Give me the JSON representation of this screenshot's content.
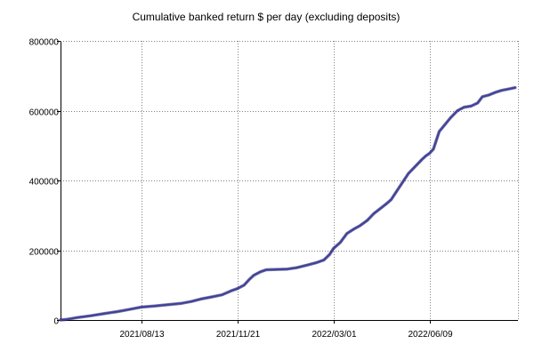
{
  "chart_data": {
    "type": "line",
    "title": "Cumulative banked return $ per day (excluding deposits)",
    "xlabel": "",
    "ylabel": "",
    "x_type": "date",
    "xlim": [
      "2021-05-21",
      "2022-09-09"
    ],
    "ylim": [
      0,
      800000
    ],
    "yticks": [
      0,
      200000,
      400000,
      600000,
      800000
    ],
    "ytick_labels": [
      "0",
      "200000",
      "400000",
      "600000",
      "800000"
    ],
    "xticks": [
      "2021-08-13",
      "2021-11-21",
      "2022-03-01",
      "2022-06-09"
    ],
    "xtick_labels": [
      "2021/08/13",
      "2021/11/21",
      "2022/03/01",
      "2022/06/09"
    ],
    "grid": true,
    "colors": {
      "line": "#4040a0",
      "line_shadow": "#101050",
      "grid": "#808080",
      "axis": "#000000"
    },
    "series": [
      {
        "x": [
          "2021-05-21",
          "2021-05-28",
          "2021-06-07",
          "2021-06-21",
          "2021-07-05",
          "2021-07-19",
          "2021-08-02",
          "2021-08-13",
          "2021-08-27",
          "2021-09-10",
          "2021-09-24",
          "2021-10-04",
          "2021-10-14",
          "2021-10-25",
          "2021-11-05",
          "2021-11-15",
          "2021-11-21",
          "2021-11-28",
          "2021-12-03",
          "2021-12-08",
          "2021-12-15",
          "2021-12-21",
          "2022-01-01",
          "2022-01-12",
          "2022-01-22",
          "2022-02-01",
          "2022-02-11",
          "2022-02-19",
          "2022-02-25",
          "2022-03-01",
          "2022-03-08",
          "2022-03-15",
          "2022-03-22",
          "2022-03-29",
          "2022-04-05",
          "2022-04-12",
          "2022-04-19",
          "2022-04-25",
          "2022-04-30",
          "2022-05-06",
          "2022-05-12",
          "2022-05-18",
          "2022-05-25",
          "2022-06-01",
          "2022-06-05",
          "2022-06-09",
          "2022-06-13",
          "2022-06-19",
          "2022-06-25",
          "2022-07-01",
          "2022-07-08",
          "2022-07-15",
          "2022-07-22",
          "2022-07-29",
          "2022-08-03",
          "2022-08-10",
          "2022-08-16",
          "2022-08-23",
          "2022-08-30",
          "2022-09-06"
        ],
        "y": [
          0,
          2000,
          7000,
          12000,
          18000,
          24000,
          31000,
          37000,
          40000,
          44000,
          48000,
          53000,
          60000,
          66000,
          72000,
          84000,
          90000,
          100000,
          115000,
          128000,
          138000,
          144000,
          145000,
          146000,
          150000,
          157000,
          164000,
          172000,
          188000,
          205000,
          222000,
          248000,
          260000,
          271000,
          285000,
          305000,
          320000,
          333000,
          345000,
          370000,
          395000,
          420000,
          440000,
          460000,
          470000,
          478000,
          490000,
          540000,
          560000,
          580000,
          600000,
          610000,
          613000,
          622000,
          640000,
          645000,
          652000,
          658000,
          662000,
          666000
        ]
      }
    ]
  }
}
